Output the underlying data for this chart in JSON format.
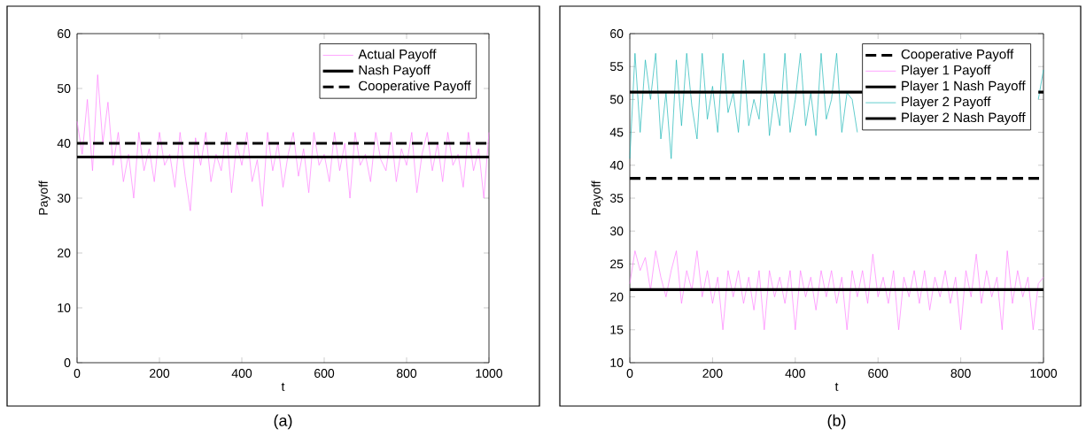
{
  "chart_data": [
    {
      "type": "line",
      "xlabel": "t",
      "ylabel": "Payoff",
      "annotations": [
        "(a)"
      ],
      "xlim": [
        0,
        1000
      ],
      "ylim": [
        0,
        60
      ],
      "xticks": [
        0,
        200,
        400,
        600,
        800,
        1000
      ],
      "yticks": [
        0,
        10,
        20,
        30,
        40,
        50,
        60
      ],
      "grid": false,
      "legend": "top right",
      "marker": "none",
      "x": [
        0,
        12.5,
        25,
        37.5,
        50,
        62.5,
        75,
        87.5,
        100,
        112.5,
        125,
        137.5,
        150,
        162.5,
        175,
        187.5,
        200,
        212.5,
        225,
        237.5,
        250,
        262.5,
        275,
        287.5,
        300,
        312.5,
        325,
        337.5,
        350,
        362.5,
        375,
        387.5,
        400,
        412.5,
        425,
        437.5,
        450,
        462.5,
        475,
        487.5,
        500,
        512.5,
        525,
        537.5,
        550,
        562.5,
        575,
        587.5,
        600,
        612.5,
        625,
        637.5,
        650,
        662.5,
        675,
        687.5,
        700,
        712.5,
        725,
        737.5,
        750,
        762.5,
        775,
        787.5,
        800,
        812.5,
        825,
        837.5,
        850,
        862.5,
        875,
        887.5,
        900,
        912.5,
        925,
        937.5,
        950,
        962.5,
        975,
        987.5,
        1000
      ],
      "series": [
        {
          "name": "Actual Payoff",
          "color": "#ff80ff",
          "line_style": "solid",
          "values": [
            44,
            38,
            48,
            35,
            52.5,
            40,
            47.5,
            36,
            42,
            33,
            38,
            30,
            42,
            35,
            39,
            33,
            42,
            36,
            38,
            32,
            42,
            34,
            27.7,
            41,
            36,
            42,
            33,
            38,
            35,
            42,
            31,
            40,
            36,
            42,
            33,
            37,
            28.5,
            42,
            35,
            40,
            32,
            38,
            42,
            34,
            39,
            31,
            42,
            36,
            38,
            33,
            42,
            35,
            40,
            30,
            42,
            36,
            38,
            33,
            42,
            37,
            35,
            42,
            33,
            39,
            36,
            42,
            31,
            38,
            42,
            35,
            40,
            33,
            42,
            36,
            38,
            32,
            42,
            35,
            39,
            30,
            42
          ]
        },
        {
          "name": "Nash Payoff",
          "color": "#000000",
          "line_style": "solid",
          "values": [
            37.5,
            37.5,
            37.5,
            37.5,
            37.5,
            37.5,
            37.5,
            37.5,
            37.5,
            37.5,
            37.5,
            37.5,
            37.5,
            37.5,
            37.5,
            37.5,
            37.5,
            37.5,
            37.5,
            37.5,
            37.5,
            37.5,
            37.5,
            37.5,
            37.5,
            37.5,
            37.5,
            37.5,
            37.5,
            37.5,
            37.5,
            37.5,
            37.5,
            37.5,
            37.5,
            37.5,
            37.5,
            37.5,
            37.5,
            37.5,
            37.5,
            37.5,
            37.5,
            37.5,
            37.5,
            37.5,
            37.5,
            37.5,
            37.5,
            37.5,
            37.5,
            37.5,
            37.5,
            37.5,
            37.5,
            37.5,
            37.5,
            37.5,
            37.5,
            37.5,
            37.5,
            37.5,
            37.5,
            37.5,
            37.5,
            37.5,
            37.5,
            37.5,
            37.5,
            37.5,
            37.5,
            37.5,
            37.5,
            37.5,
            37.5,
            37.5,
            37.5,
            37.5,
            37.5,
            37.5,
            37.5
          ]
        },
        {
          "name": "Cooperative Payoff",
          "color": "#000000",
          "line_style": "dashed",
          "values": [
            40,
            40,
            40,
            40,
            40,
            40,
            40,
            40,
            40,
            40,
            40,
            40,
            40,
            40,
            40,
            40,
            40,
            40,
            40,
            40,
            40,
            40,
            40,
            40,
            40,
            40,
            40,
            40,
            40,
            40,
            40,
            40,
            40,
            40,
            40,
            40,
            40,
            40,
            40,
            40,
            40,
            40,
            40,
            40,
            40,
            40,
            40,
            40,
            40,
            40,
            40,
            40,
            40,
            40,
            40,
            40,
            40,
            40,
            40,
            40,
            40,
            40,
            40,
            40,
            40,
            40,
            40,
            40,
            40,
            40,
            40,
            40,
            40,
            40,
            40,
            40,
            40,
            40,
            40,
            40,
            40
          ]
        }
      ]
    },
    {
      "type": "line",
      "xlabel": "t",
      "ylabel": "Payoff",
      "annotations": [
        "(b)"
      ],
      "xlim": [
        0,
        1000
      ],
      "ylim": [
        10,
        60
      ],
      "xticks": [
        0,
        200,
        400,
        600,
        800,
        1000
      ],
      "yticks": [
        10,
        15,
        20,
        25,
        30,
        35,
        40,
        45,
        50,
        55,
        60
      ],
      "grid": false,
      "legend": "top right",
      "marker": "none",
      "x": [
        0,
        12.5,
        25,
        37.5,
        50,
        62.5,
        75,
        87.5,
        100,
        112.5,
        125,
        137.5,
        150,
        162.5,
        175,
        187.5,
        200,
        212.5,
        225,
        237.5,
        250,
        262.5,
        275,
        287.5,
        300,
        312.5,
        325,
        337.5,
        350,
        362.5,
        375,
        387.5,
        400,
        412.5,
        425,
        437.5,
        450,
        462.5,
        475,
        487.5,
        500,
        512.5,
        525,
        537.5,
        550,
        562.5,
        575,
        587.5,
        600,
        612.5,
        625,
        637.5,
        650,
        662.5,
        675,
        687.5,
        700,
        712.5,
        725,
        737.5,
        750,
        762.5,
        775,
        787.5,
        800,
        812.5,
        825,
        837.5,
        850,
        862.5,
        875,
        887.5,
        900,
        912.5,
        925,
        937.5,
        950,
        962.5,
        975,
        987.5,
        1000
      ],
      "series": [
        {
          "name": "Cooperative Payoff",
          "color": "#000000",
          "line_style": "dashed",
          "values": [
            38,
            38,
            38,
            38,
            38,
            38,
            38,
            38,
            38,
            38,
            38,
            38,
            38,
            38,
            38,
            38,
            38,
            38,
            38,
            38,
            38,
            38,
            38,
            38,
            38,
            38,
            38,
            38,
            38,
            38,
            38,
            38,
            38,
            38,
            38,
            38,
            38,
            38,
            38,
            38,
            38,
            38,
            38,
            38,
            38,
            38,
            38,
            38,
            38,
            38,
            38,
            38,
            38,
            38,
            38,
            38,
            38,
            38,
            38,
            38,
            38,
            38,
            38,
            38,
            38,
            38,
            38,
            38,
            38,
            38,
            38,
            38,
            38,
            38,
            38,
            38,
            38,
            38,
            38,
            38,
            38
          ]
        },
        {
          "name": "Player 1 Payoff",
          "color": "#ff80ff",
          "line_style": "solid",
          "values": [
            22,
            27,
            24,
            26,
            21,
            27,
            23,
            20,
            24,
            27,
            19,
            24,
            21,
            27,
            20,
            24,
            19,
            23,
            15,
            24,
            20,
            24,
            19,
            23,
            18,
            24,
            15,
            24,
            20,
            23,
            19,
            24,
            15,
            24,
            20,
            23,
            18,
            24,
            20,
            24,
            19,
            23,
            15,
            24,
            20,
            24,
            19,
            26.5,
            20,
            23,
            19,
            24,
            15,
            23,
            20,
            24,
            19,
            24,
            18,
            23,
            20,
            24,
            19,
            23,
            15,
            24,
            20,
            26.5,
            19,
            24,
            20,
            23,
            15,
            27,
            19,
            24,
            20,
            23,
            15,
            22,
            23
          ]
        },
        {
          "name": "Player 1 Nash Payoff",
          "color": "#000000",
          "line_style": "solid",
          "values": [
            21.1,
            21.1,
            21.1,
            21.1,
            21.1,
            21.1,
            21.1,
            21.1,
            21.1,
            21.1,
            21.1,
            21.1,
            21.1,
            21.1,
            21.1,
            21.1,
            21.1,
            21.1,
            21.1,
            21.1,
            21.1,
            21.1,
            21.1,
            21.1,
            21.1,
            21.1,
            21.1,
            21.1,
            21.1,
            21.1,
            21.1,
            21.1,
            21.1,
            21.1,
            21.1,
            21.1,
            21.1,
            21.1,
            21.1,
            21.1,
            21.1,
            21.1,
            21.1,
            21.1,
            21.1,
            21.1,
            21.1,
            21.1,
            21.1,
            21.1,
            21.1,
            21.1,
            21.1,
            21.1,
            21.1,
            21.1,
            21.1,
            21.1,
            21.1,
            21.1,
            21.1,
            21.1,
            21.1,
            21.1,
            21.1,
            21.1,
            21.1,
            21.1,
            21.1,
            21.1,
            21.1,
            21.1,
            21.1,
            21.1,
            21.1,
            21.1,
            21.1,
            21.1,
            21.1,
            21.1,
            21.1
          ]
        },
        {
          "name": "Player 2 Payoff",
          "color": "#20b8b8",
          "line_style": "solid",
          "values": [
            41,
            57,
            45,
            56,
            50,
            57,
            44,
            51,
            41,
            56,
            46,
            57,
            49,
            44,
            57,
            47,
            52,
            45,
            57,
            48,
            51,
            45,
            56,
            46,
            50,
            47,
            57,
            44.5,
            51,
            46,
            57,
            45,
            50,
            57,
            46,
            51,
            44.5,
            57,
            47,
            50,
            57,
            45,
            51,
            50,
            45,
            null,
            null,
            null,
            null,
            null,
            null,
            null,
            null,
            null,
            null,
            null,
            null,
            null,
            null,
            null,
            null,
            null,
            null,
            null,
            null,
            null,
            null,
            null,
            null,
            null,
            null,
            null,
            null,
            null,
            null,
            null,
            null,
            null,
            null,
            50,
            54.5
          ]
        },
        {
          "name": "Player 2 Nash Payoff",
          "color": "#000000",
          "line_style": "solid",
          "values": [
            51.1,
            51.1,
            51.1,
            51.1,
            51.1,
            51.1,
            51.1,
            51.1,
            51.1,
            51.1,
            51.1,
            51.1,
            51.1,
            51.1,
            51.1,
            51.1,
            51.1,
            51.1,
            51.1,
            51.1,
            51.1,
            51.1,
            51.1,
            51.1,
            51.1,
            51.1,
            51.1,
            51.1,
            51.1,
            51.1,
            51.1,
            51.1,
            51.1,
            51.1,
            51.1,
            51.1,
            51.1,
            51.1,
            51.1,
            51.1,
            51.1,
            51.1,
            51.1,
            51.1,
            51.1,
            51.1,
            null,
            null,
            null,
            null,
            null,
            null,
            null,
            null,
            null,
            null,
            null,
            null,
            null,
            null,
            null,
            null,
            null,
            null,
            null,
            null,
            null,
            null,
            null,
            null,
            null,
            null,
            null,
            null,
            null,
            null,
            null,
            null,
            null,
            51.1,
            51.1
          ]
        }
      ]
    }
  ]
}
